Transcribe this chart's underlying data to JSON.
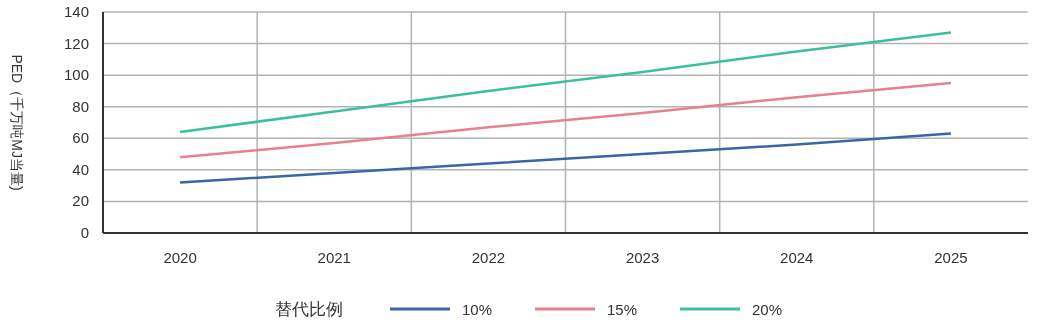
{
  "chart_data": {
    "type": "line",
    "ylabel": "PED（千万吨MJ当量)",
    "legend_title": "替代比例",
    "categories": [
      "2020",
      "2021",
      "2022",
      "2023",
      "2024",
      "2025"
    ],
    "series": [
      {
        "name": "10%",
        "color": "#3a66a6",
        "values": [
          32,
          38,
          44,
          50,
          56,
          63
        ]
      },
      {
        "name": "15%",
        "color": "#e8808f",
        "values": [
          48,
          57,
          67,
          76,
          86,
          95
        ]
      },
      {
        "name": "20%",
        "color": "#3cbf9e",
        "values": [
          64,
          77,
          90,
          102,
          115,
          127
        ]
      }
    ],
    "ylim": [
      0,
      140
    ],
    "yticks": [
      0,
      20,
      40,
      60,
      80,
      100,
      120,
      140
    ],
    "grid": true,
    "legend": "bottom",
    "marker": "none",
    "line_style": "solid"
  }
}
